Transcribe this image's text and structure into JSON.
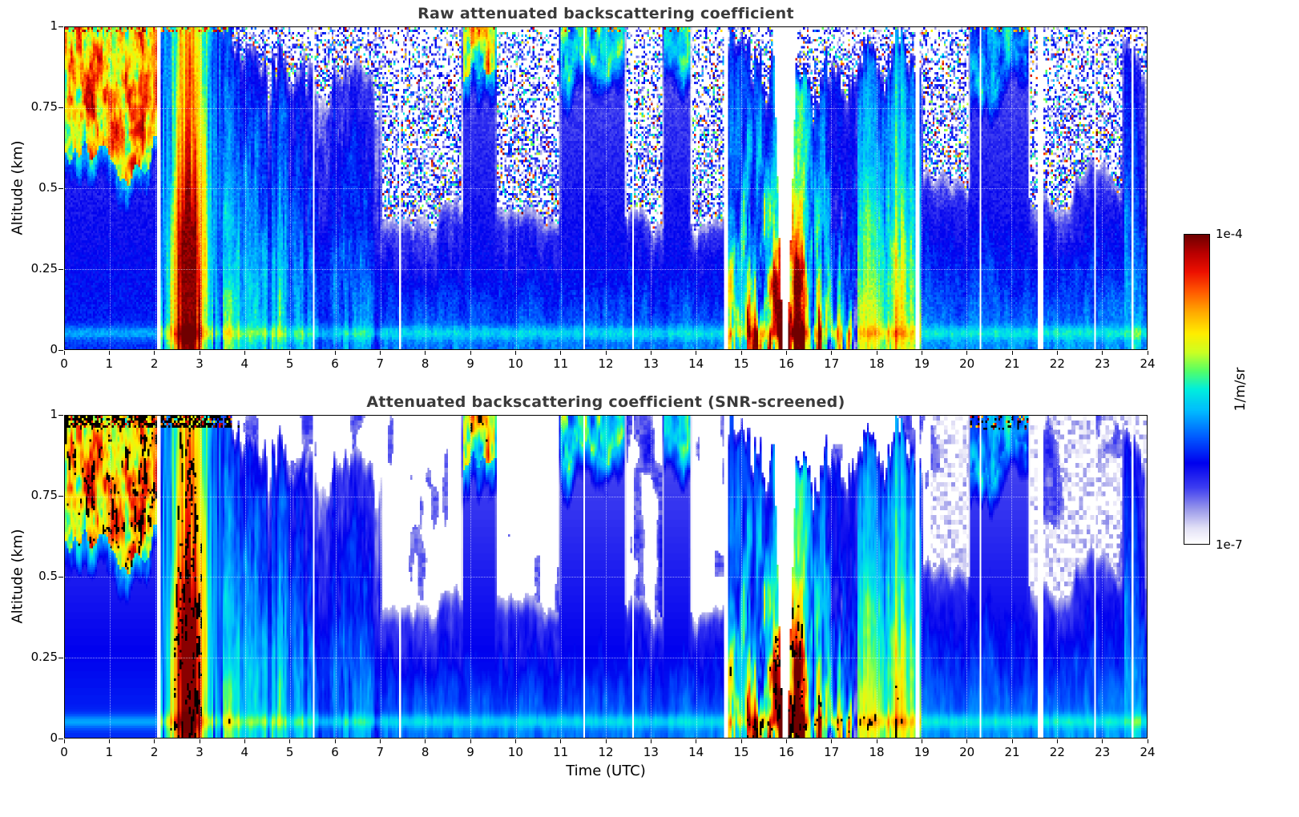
{
  "chart_data": {
    "type": "heatmap",
    "panels": [
      {
        "id": "raw",
        "title": "Raw attenuated backscattering coefficient"
      },
      {
        "id": "screened",
        "title": "Attenuated backscattering coefficient (SNR-screened)"
      }
    ],
    "x": {
      "label": "Time (UTC)",
      "min": 0,
      "max": 24,
      "ticks": [
        0,
        1,
        2,
        3,
        4,
        5,
        6,
        7,
        8,
        9,
        10,
        11,
        12,
        13,
        14,
        15,
        16,
        17,
        18,
        19,
        20,
        21,
        22,
        23,
        24
      ]
    },
    "y": {
      "label": "Altitude (km)",
      "min": 0,
      "max": 1,
      "ticks": [
        0,
        0.25,
        0.5,
        0.75,
        1
      ],
      "tick_labels": [
        "0",
        "0.25",
        "0.5",
        "0.75",
        "1"
      ]
    },
    "color_scale": {
      "units": "1/m/sr",
      "scale": "log",
      "min": 1e-07,
      "max": 0.0001,
      "min_label": "1e-7",
      "max_label": "1e-4"
    },
    "colormap": {
      "stops": [
        [
          0.0,
          "#ffffff"
        ],
        [
          0.05,
          "#e2e0f6"
        ],
        [
          0.11,
          "#9a99ea"
        ],
        [
          0.18,
          "#3e3ef0"
        ],
        [
          0.26,
          "#0000ee"
        ],
        [
          0.34,
          "#0055ff"
        ],
        [
          0.43,
          "#00bbff"
        ],
        [
          0.5,
          "#00eedd"
        ],
        [
          0.56,
          "#55ff66"
        ],
        [
          0.62,
          "#ccff22"
        ],
        [
          0.68,
          "#ffee00"
        ],
        [
          0.75,
          "#ffaa00"
        ],
        [
          0.82,
          "#ff5500"
        ],
        [
          0.88,
          "#ee1100"
        ],
        [
          0.94,
          "#bb0000"
        ],
        [
          1.0,
          "#700000"
        ]
      ]
    },
    "grid": {
      "style": "dotted",
      "color": "rgba(255,255,255,0.6)"
    },
    "resolution": {
      "cols": 576,
      "rows": 136
    },
    "features": [
      {
        "kind": "surface_band",
        "z_km": 0.05,
        "intensity": 0.12
      },
      {
        "kind": "cloud_deck",
        "t0": 0.0,
        "t1": 2.05,
        "base_km": 0.6,
        "top_km": 1.0,
        "intensity": 0.97
      },
      {
        "kind": "precip_plume",
        "t0": 2.1,
        "t1": 3.5,
        "core_t": 2.75,
        "intensity": 0.95
      },
      {
        "kind": "aerosol_towers",
        "t0": 3.5,
        "t1": 5.3,
        "top_km": 1.0,
        "intensity": 0.55
      },
      {
        "kind": "aerosol_towers",
        "t0": 5.3,
        "t1": 7.0,
        "top_km": 0.95,
        "intensity": 0.44
      },
      {
        "kind": "shallow_layer",
        "t0": 7.0,
        "t1": 14.65,
        "top_km": 0.45,
        "intensity": 0.34
      },
      {
        "kind": "cloud_deck",
        "t0": 8.85,
        "t1": 9.55,
        "base_km": 0.86,
        "top_km": 1.0,
        "intensity": 0.85
      },
      {
        "kind": "cloud_deck",
        "t0": 11.0,
        "t1": 12.4,
        "base_km": 0.9,
        "top_km": 1.0,
        "intensity": 0.68
      },
      {
        "kind": "cloud_deck",
        "t0": 13.3,
        "t1": 13.85,
        "base_km": 0.88,
        "top_km": 1.0,
        "intensity": 0.6
      },
      {
        "kind": "storm_event",
        "t0": 14.72,
        "t1": 17.55,
        "intensity": 1.0
      },
      {
        "kind": "aerosol_towers",
        "t0": 17.6,
        "t1": 19.0,
        "top_km": 1.0,
        "intensity": 0.72
      },
      {
        "kind": "shallow_layer",
        "t0": 19.0,
        "t1": 24.0,
        "top_km": 0.55,
        "intensity": 0.36
      },
      {
        "kind": "cloud_deck",
        "t0": 20.1,
        "t1": 21.35,
        "base_km": 0.88,
        "top_km": 1.0,
        "intensity": 0.55
      },
      {
        "kind": "aerosol_towers",
        "t0": 23.5,
        "t1": 23.95,
        "top_km": 1.0,
        "intensity": 0.5
      }
    ],
    "gaps": [
      {
        "t": 2.08,
        "w": 0.05
      },
      {
        "t": 5.53,
        "w": 0.06
      },
      {
        "t": 7.43,
        "w": 0.06
      },
      {
        "t": 11.53,
        "w": 0.06
      },
      {
        "t": 12.62,
        "w": 0.05
      },
      {
        "t": 14.68,
        "w": 0.07
      },
      {
        "t": 15.98,
        "w": 0.1,
        "flare": 0.22
      },
      {
        "t": 18.92,
        "w": 0.07
      },
      {
        "t": 20.32,
        "w": 0.05
      },
      {
        "t": 21.63,
        "w": 0.12
      },
      {
        "t": 22.85,
        "w": 0.05
      },
      {
        "t": 23.68,
        "w": 0.06
      }
    ]
  },
  "styles": {
    "title_color": "#3a3a3a",
    "axis_color": "#000000",
    "background": "#ffffff"
  }
}
